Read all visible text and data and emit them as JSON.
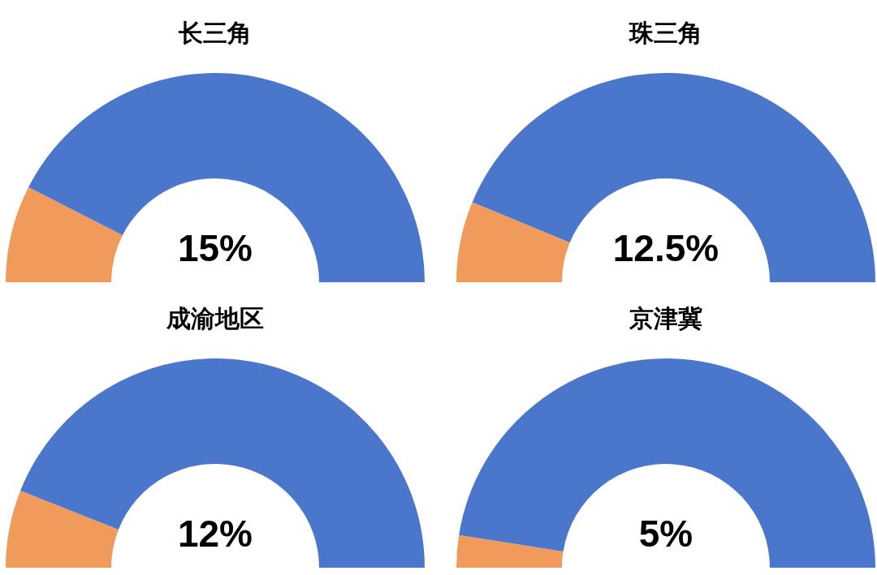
{
  "chart_data": [
    {
      "type": "donut",
      "title": "长三角",
      "categories": [
        null,
        null
      ],
      "values": [
        15,
        85
      ],
      "colors": [
        "#f09a5c",
        "#4a76cc"
      ],
      "annotations": [
        "15%"
      ]
    },
    {
      "type": "donut",
      "title": "珠三角",
      "categories": [
        null,
        null
      ],
      "values": [
        12.5,
        87.5
      ],
      "colors": [
        "#f09a5c",
        "#4a76cc"
      ],
      "annotations": [
        "12.5%"
      ]
    },
    {
      "type": "donut",
      "title": "成渝地区",
      "categories": [
        null,
        null
      ],
      "values": [
        12,
        88
      ],
      "colors": [
        "#f09a5c",
        "#4a76cc"
      ],
      "annotations": [
        "12%"
      ]
    },
    {
      "type": "donut",
      "title": "京津冀",
      "categories": [
        null,
        null
      ],
      "values": [
        5,
        95
      ],
      "colors": [
        "#f09a5c",
        "#4a76cc"
      ],
      "annotations": [
        "5%"
      ]
    }
  ]
}
